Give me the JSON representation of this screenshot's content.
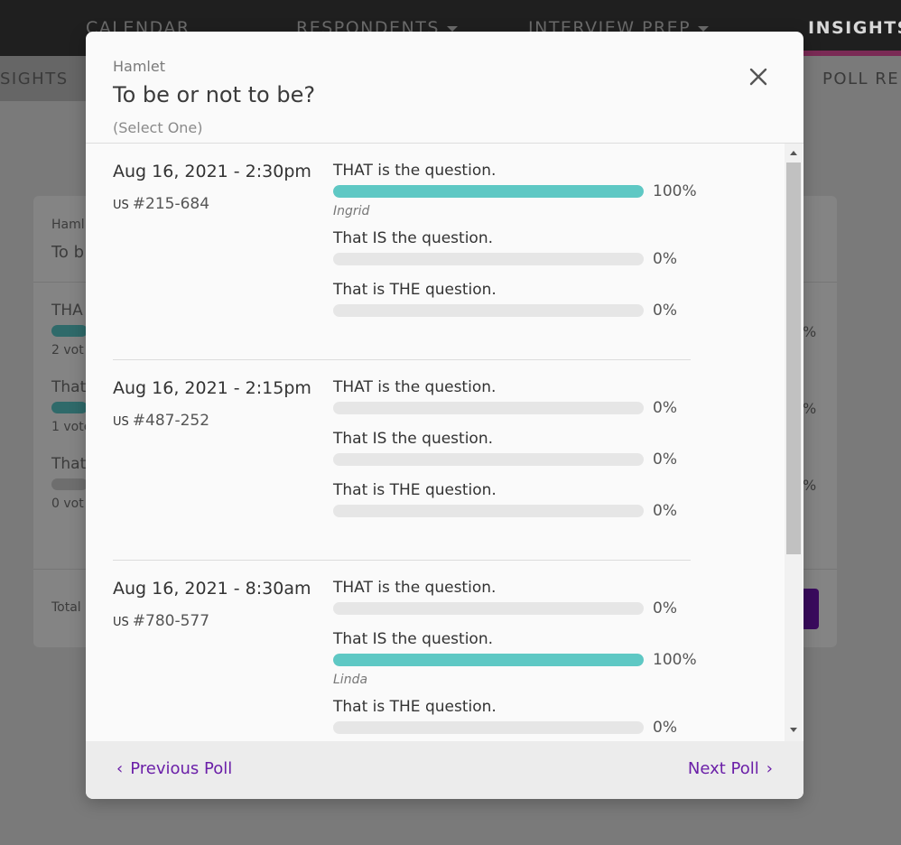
{
  "background": {
    "nav": {
      "items": [
        {
          "label": "CALENDAR"
        },
        {
          "label": "RESPONDENTS"
        },
        {
          "label": "INTERVIEW PREP"
        },
        {
          "label": "INSIGHTS"
        }
      ]
    },
    "subnav": {
      "left_label": "SIGHTS",
      "right_label": "POLL RE"
    },
    "card": {
      "header_sub": "Haml",
      "header_title": "To b",
      "options": [
        {
          "label": "THA",
          "votes": "2 vot",
          "pct": "%"
        },
        {
          "label": "That",
          "votes": "1 vote",
          "pct": "%"
        },
        {
          "label": "That",
          "votes": "0 vot",
          "pct": "%"
        }
      ],
      "total": "Total"
    }
  },
  "modal": {
    "subtitle": "Hamlet",
    "title": "To be or not to be?",
    "hint": "(Select One)",
    "entries": [
      {
        "date": "Aug 16, 2021 - 2:30pm",
        "country": "US",
        "id": "#215-684",
        "options": [
          {
            "label": "THAT is the question.",
            "pct": 100,
            "pct_label": "100%",
            "voter": "Ingrid"
          },
          {
            "label": "That IS the question.",
            "pct": 0,
            "pct_label": "0%",
            "voter": ""
          },
          {
            "label": "That is THE question.",
            "pct": 0,
            "pct_label": "0%",
            "voter": ""
          }
        ]
      },
      {
        "date": "Aug 16, 2021 - 2:15pm",
        "country": "US",
        "id": "#487-252",
        "options": [
          {
            "label": "THAT is the question.",
            "pct": 0,
            "pct_label": "0%",
            "voter": ""
          },
          {
            "label": "That IS the question.",
            "pct": 0,
            "pct_label": "0%",
            "voter": ""
          },
          {
            "label": "That is THE question.",
            "pct": 0,
            "pct_label": "0%",
            "voter": ""
          }
        ]
      },
      {
        "date": "Aug 16, 2021 - 8:30am",
        "country": "US",
        "id": "#780-577",
        "options": [
          {
            "label": "THAT is the question.",
            "pct": 0,
            "pct_label": "0%",
            "voter": ""
          },
          {
            "label": "That IS the question.",
            "pct": 100,
            "pct_label": "100%",
            "voter": "Linda"
          },
          {
            "label": "That is THE question.",
            "pct": 0,
            "pct_label": "0%",
            "voter": ""
          }
        ]
      }
    ],
    "footer": {
      "prev_label": "Previous Poll",
      "next_label": "Next Poll"
    }
  },
  "colors": {
    "accent": "#6b1fa8",
    "bar_fill": "#5ec8c4",
    "bar_track": "#e6e6e6"
  },
  "icons": {
    "close": "close-icon",
    "prev": "chevron-left-icon",
    "next": "chevron-right-icon",
    "caret": "caret-down-icon"
  }
}
